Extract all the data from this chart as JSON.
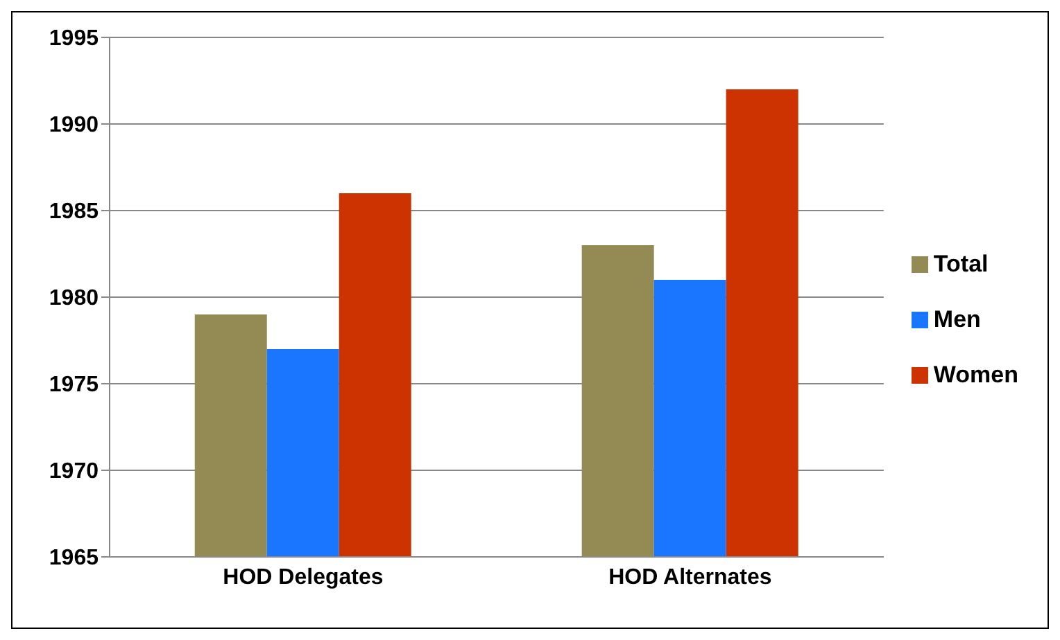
{
  "chart_data": {
    "type": "bar",
    "categories": [
      "HOD Delegates",
      "HOD Alternates"
    ],
    "series": [
      {
        "name": "Total",
        "color": "#948a54",
        "values": [
          1979,
          1983
        ]
      },
      {
        "name": "Men",
        "color": "#1a75ff",
        "values": [
          1977,
          1981
        ]
      },
      {
        "name": "Women",
        "color": "#cc3300",
        "values": [
          1986,
          1992
        ]
      }
    ],
    "ylim": [
      1965,
      1995
    ],
    "yticks": [
      1965,
      1970,
      1975,
      1980,
      1985,
      1990,
      1995
    ],
    "grid": "y",
    "legend": "right"
  }
}
